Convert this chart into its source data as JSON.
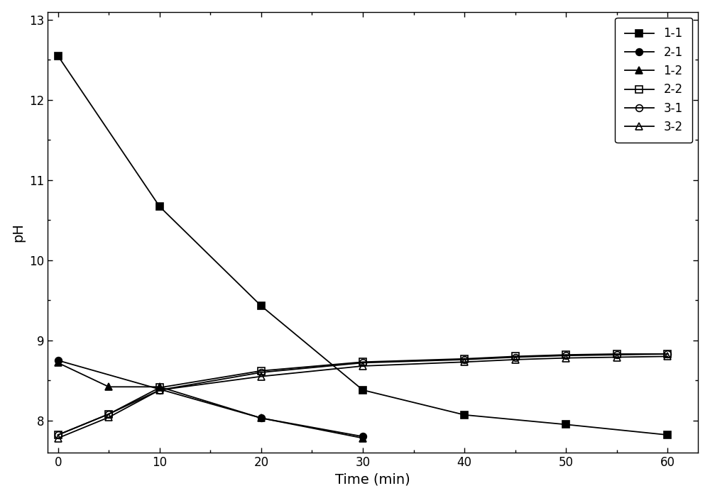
{
  "series": [
    {
      "label": "1-1",
      "x": [
        0,
        10,
        20,
        30,
        40,
        50,
        60
      ],
      "y": [
        12.55,
        10.67,
        9.43,
        8.38,
        8.07,
        7.95,
        7.82
      ],
      "color": "#000000",
      "marker": "s",
      "markersize": 7,
      "fillstyle": "full",
      "linestyle": "-"
    },
    {
      "label": "2-1",
      "x": [
        0,
        20,
        30
      ],
      "y": [
        8.75,
        8.03,
        7.8
      ],
      "color": "#000000",
      "marker": "o",
      "markersize": 7,
      "fillstyle": "full",
      "linestyle": "-"
    },
    {
      "label": "1-2",
      "x": [
        0,
        5,
        10,
        20,
        30
      ],
      "y": [
        8.72,
        8.42,
        8.42,
        8.03,
        7.78
      ],
      "color": "#000000",
      "marker": "^",
      "markersize": 7,
      "fillstyle": "full",
      "linestyle": "-"
    },
    {
      "label": "2-2",
      "x": [
        0,
        5,
        10,
        20,
        30,
        40,
        45,
        50,
        55,
        60
      ],
      "y": [
        7.82,
        8.08,
        8.41,
        8.62,
        8.73,
        8.77,
        8.8,
        8.82,
        8.83,
        8.83
      ],
      "color": "#000000",
      "marker": "s",
      "markersize": 7,
      "fillstyle": "none",
      "linestyle": "-"
    },
    {
      "label": "3-1",
      "x": [
        0,
        5,
        10,
        20,
        30,
        40,
        45,
        50,
        55,
        60
      ],
      "y": [
        7.82,
        8.08,
        8.38,
        8.6,
        8.72,
        8.76,
        8.79,
        8.81,
        8.82,
        8.83
      ],
      "color": "#000000",
      "marker": "o",
      "markersize": 7,
      "fillstyle": "none",
      "linestyle": "-"
    },
    {
      "label": "3-2",
      "x": [
        0,
        5,
        10,
        20,
        30,
        40,
        45,
        50,
        55,
        60
      ],
      "y": [
        7.78,
        8.04,
        8.38,
        8.55,
        8.68,
        8.73,
        8.76,
        8.78,
        8.79,
        8.8
      ],
      "color": "#000000",
      "marker": "^",
      "markersize": 7,
      "fillstyle": "none",
      "linestyle": "-"
    }
  ],
  "xlabel": "Time (min)",
  "ylabel": "pH",
  "xlim": [
    -1,
    63
  ],
  "ylim": [
    7.6,
    13.1
  ],
  "xticks": [
    0,
    10,
    20,
    30,
    40,
    50,
    60
  ],
  "yticks": [
    8,
    9,
    10,
    11,
    12,
    13
  ],
  "legend_loc": "upper right",
  "background_color": "#ffffff",
  "linewidth": 1.3,
  "fontsize_labels": 14,
  "fontsize_ticks": 12,
  "fontsize_legend": 12
}
